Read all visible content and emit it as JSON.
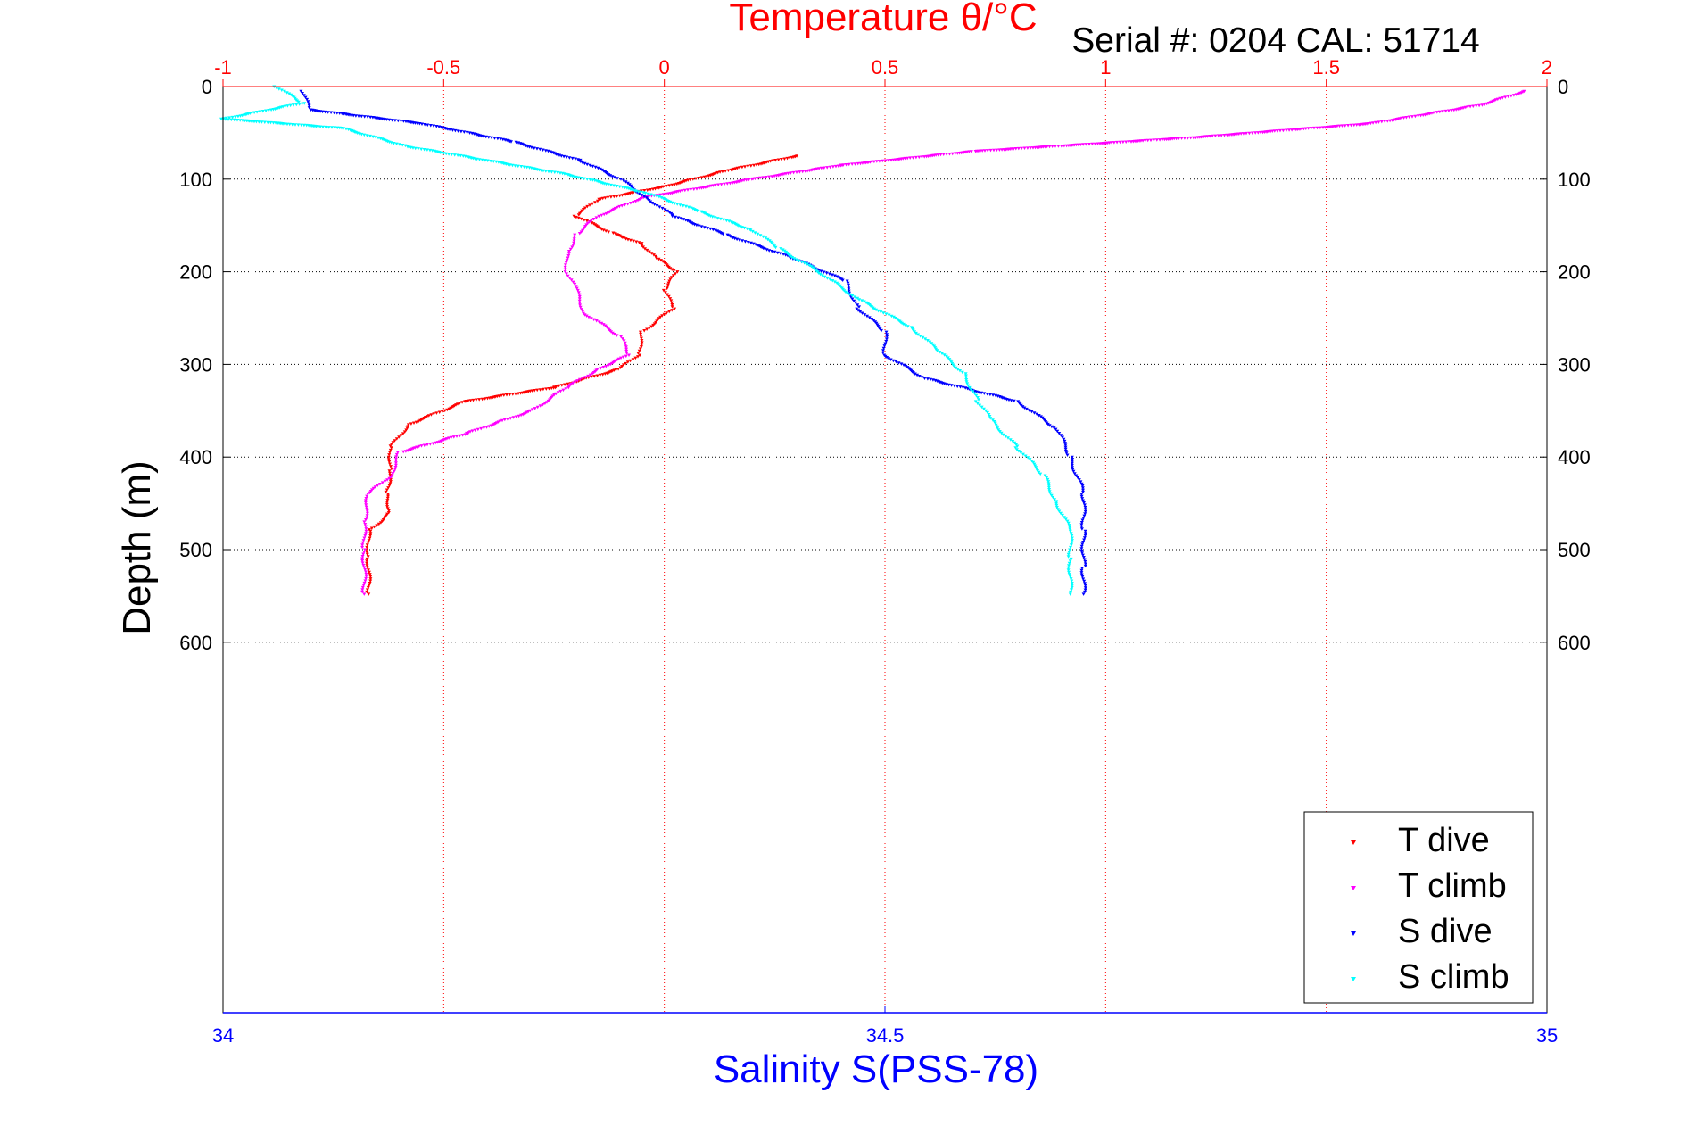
{
  "chart_data": {
    "type": "scatter",
    "title": "Temperature θ/°C",
    "annotation": "Serial #: 0204  CAL: 51714",
    "ylabel": "Depth (m)",
    "xlabel_bottom": "Salinity S(PSS-78)",
    "xlabel_top": "Temperature θ/°C",
    "ylim": [
      0,
      1000
    ],
    "y_reversed": true,
    "y_ticks": [
      0,
      100,
      200,
      300,
      400,
      500,
      600
    ],
    "x_top_lim": [
      -1,
      2
    ],
    "x_top_ticks": [
      -1,
      -0.5,
      0,
      0.5,
      1,
      1.5,
      2
    ],
    "x_top_tick_labels": [
      "-1",
      "-0.5",
      "0",
      "0.5",
      "1",
      "1.5",
      "2"
    ],
    "x_bottom_lim": [
      34,
      35
    ],
    "x_bottom_ticks": [
      34,
      34.5,
      35
    ],
    "x_bottom_tick_labels": [
      "34",
      "34.5",
      "35"
    ],
    "grid": true,
    "legend_position": "bottom-right",
    "colors": {
      "temperature_axis": "#ff0000",
      "salinity_axis": "#0000ff",
      "grid_vertical": "#ff0000",
      "grid_horizontal": "#000000"
    },
    "series": [
      {
        "name": "T dive",
        "axis": "temperature",
        "color": "#ff0000",
        "points": [
          [
            0.3,
            75
          ],
          [
            0.15,
            90
          ],
          [
            0.0,
            108
          ],
          [
            -0.15,
            122
          ],
          [
            -0.2,
            140
          ],
          [
            -0.12,
            158
          ],
          [
            -0.05,
            170
          ],
          [
            -0.02,
            185
          ],
          [
            0.03,
            200
          ],
          [
            0.0,
            220
          ],
          [
            0.02,
            240
          ],
          [
            -0.05,
            265
          ],
          [
            -0.06,
            290
          ],
          [
            -0.1,
            305
          ],
          [
            -0.25,
            325
          ],
          [
            -0.45,
            340
          ],
          [
            -0.58,
            365
          ],
          [
            -0.62,
            390
          ],
          [
            -0.62,
            415
          ],
          [
            -0.63,
            440
          ],
          [
            -0.62,
            460
          ],
          [
            -0.67,
            480
          ],
          [
            -0.67,
            510
          ],
          [
            -0.67,
            548
          ]
        ]
      },
      {
        "name": "T climb",
        "axis": "temperature",
        "color": "#ff00ff",
        "points": [
          [
            1.95,
            5
          ],
          [
            1.85,
            20
          ],
          [
            1.6,
            40
          ],
          [
            1.2,
            55
          ],
          [
            0.7,
            70
          ],
          [
            0.4,
            85
          ],
          [
            0.2,
            100
          ],
          [
            -0.05,
            120
          ],
          [
            -0.15,
            140
          ],
          [
            -0.2,
            160
          ],
          [
            -0.22,
            180
          ],
          [
            -0.22,
            200
          ],
          [
            -0.2,
            220
          ],
          [
            -0.18,
            245
          ],
          [
            -0.1,
            270
          ],
          [
            -0.08,
            290
          ],
          [
            -0.15,
            305
          ],
          [
            -0.22,
            325
          ],
          [
            -0.3,
            350
          ],
          [
            -0.45,
            375
          ],
          [
            -0.6,
            395
          ],
          [
            -0.62,
            420
          ],
          [
            -0.67,
            440
          ],
          [
            -0.68,
            470
          ],
          [
            -0.68,
            500
          ],
          [
            -0.68,
            548
          ]
        ]
      },
      {
        "name": "S dive",
        "axis": "salinity",
        "color": "#0000ff",
        "points": [
          [
            34.06,
            5
          ],
          [
            34.065,
            25
          ],
          [
            34.15,
            40
          ],
          [
            34.22,
            60
          ],
          [
            34.27,
            80
          ],
          [
            34.3,
            100
          ],
          [
            34.32,
            120
          ],
          [
            34.34,
            140
          ],
          [
            34.38,
            160
          ],
          [
            34.43,
            185
          ],
          [
            34.47,
            210
          ],
          [
            34.48,
            240
          ],
          [
            34.5,
            265
          ],
          [
            34.5,
            290
          ],
          [
            34.53,
            315
          ],
          [
            34.6,
            340
          ],
          [
            34.63,
            370
          ],
          [
            34.64,
            400
          ],
          [
            34.65,
            440
          ],
          [
            34.65,
            480
          ],
          [
            34.65,
            520
          ],
          [
            34.65,
            548
          ]
        ]
      },
      {
        "name": "S climb",
        "axis": "salinity",
        "color": "#00ffff",
        "points": [
          [
            34.04,
            0
          ],
          [
            34.06,
            18
          ],
          [
            34.0,
            35
          ],
          [
            34.09,
            45
          ],
          [
            34.14,
            65
          ],
          [
            34.2,
            80
          ],
          [
            34.26,
            95
          ],
          [
            34.32,
            115
          ],
          [
            34.36,
            135
          ],
          [
            34.4,
            155
          ],
          [
            34.42,
            175
          ],
          [
            34.45,
            200
          ],
          [
            34.48,
            230
          ],
          [
            34.52,
            260
          ],
          [
            34.54,
            285
          ],
          [
            34.56,
            310
          ],
          [
            34.57,
            340
          ],
          [
            34.58,
            360
          ],
          [
            34.6,
            390
          ],
          [
            34.62,
            420
          ],
          [
            34.63,
            450
          ],
          [
            34.64,
            480
          ],
          [
            34.64,
            510
          ],
          [
            34.64,
            548
          ]
        ]
      }
    ]
  }
}
